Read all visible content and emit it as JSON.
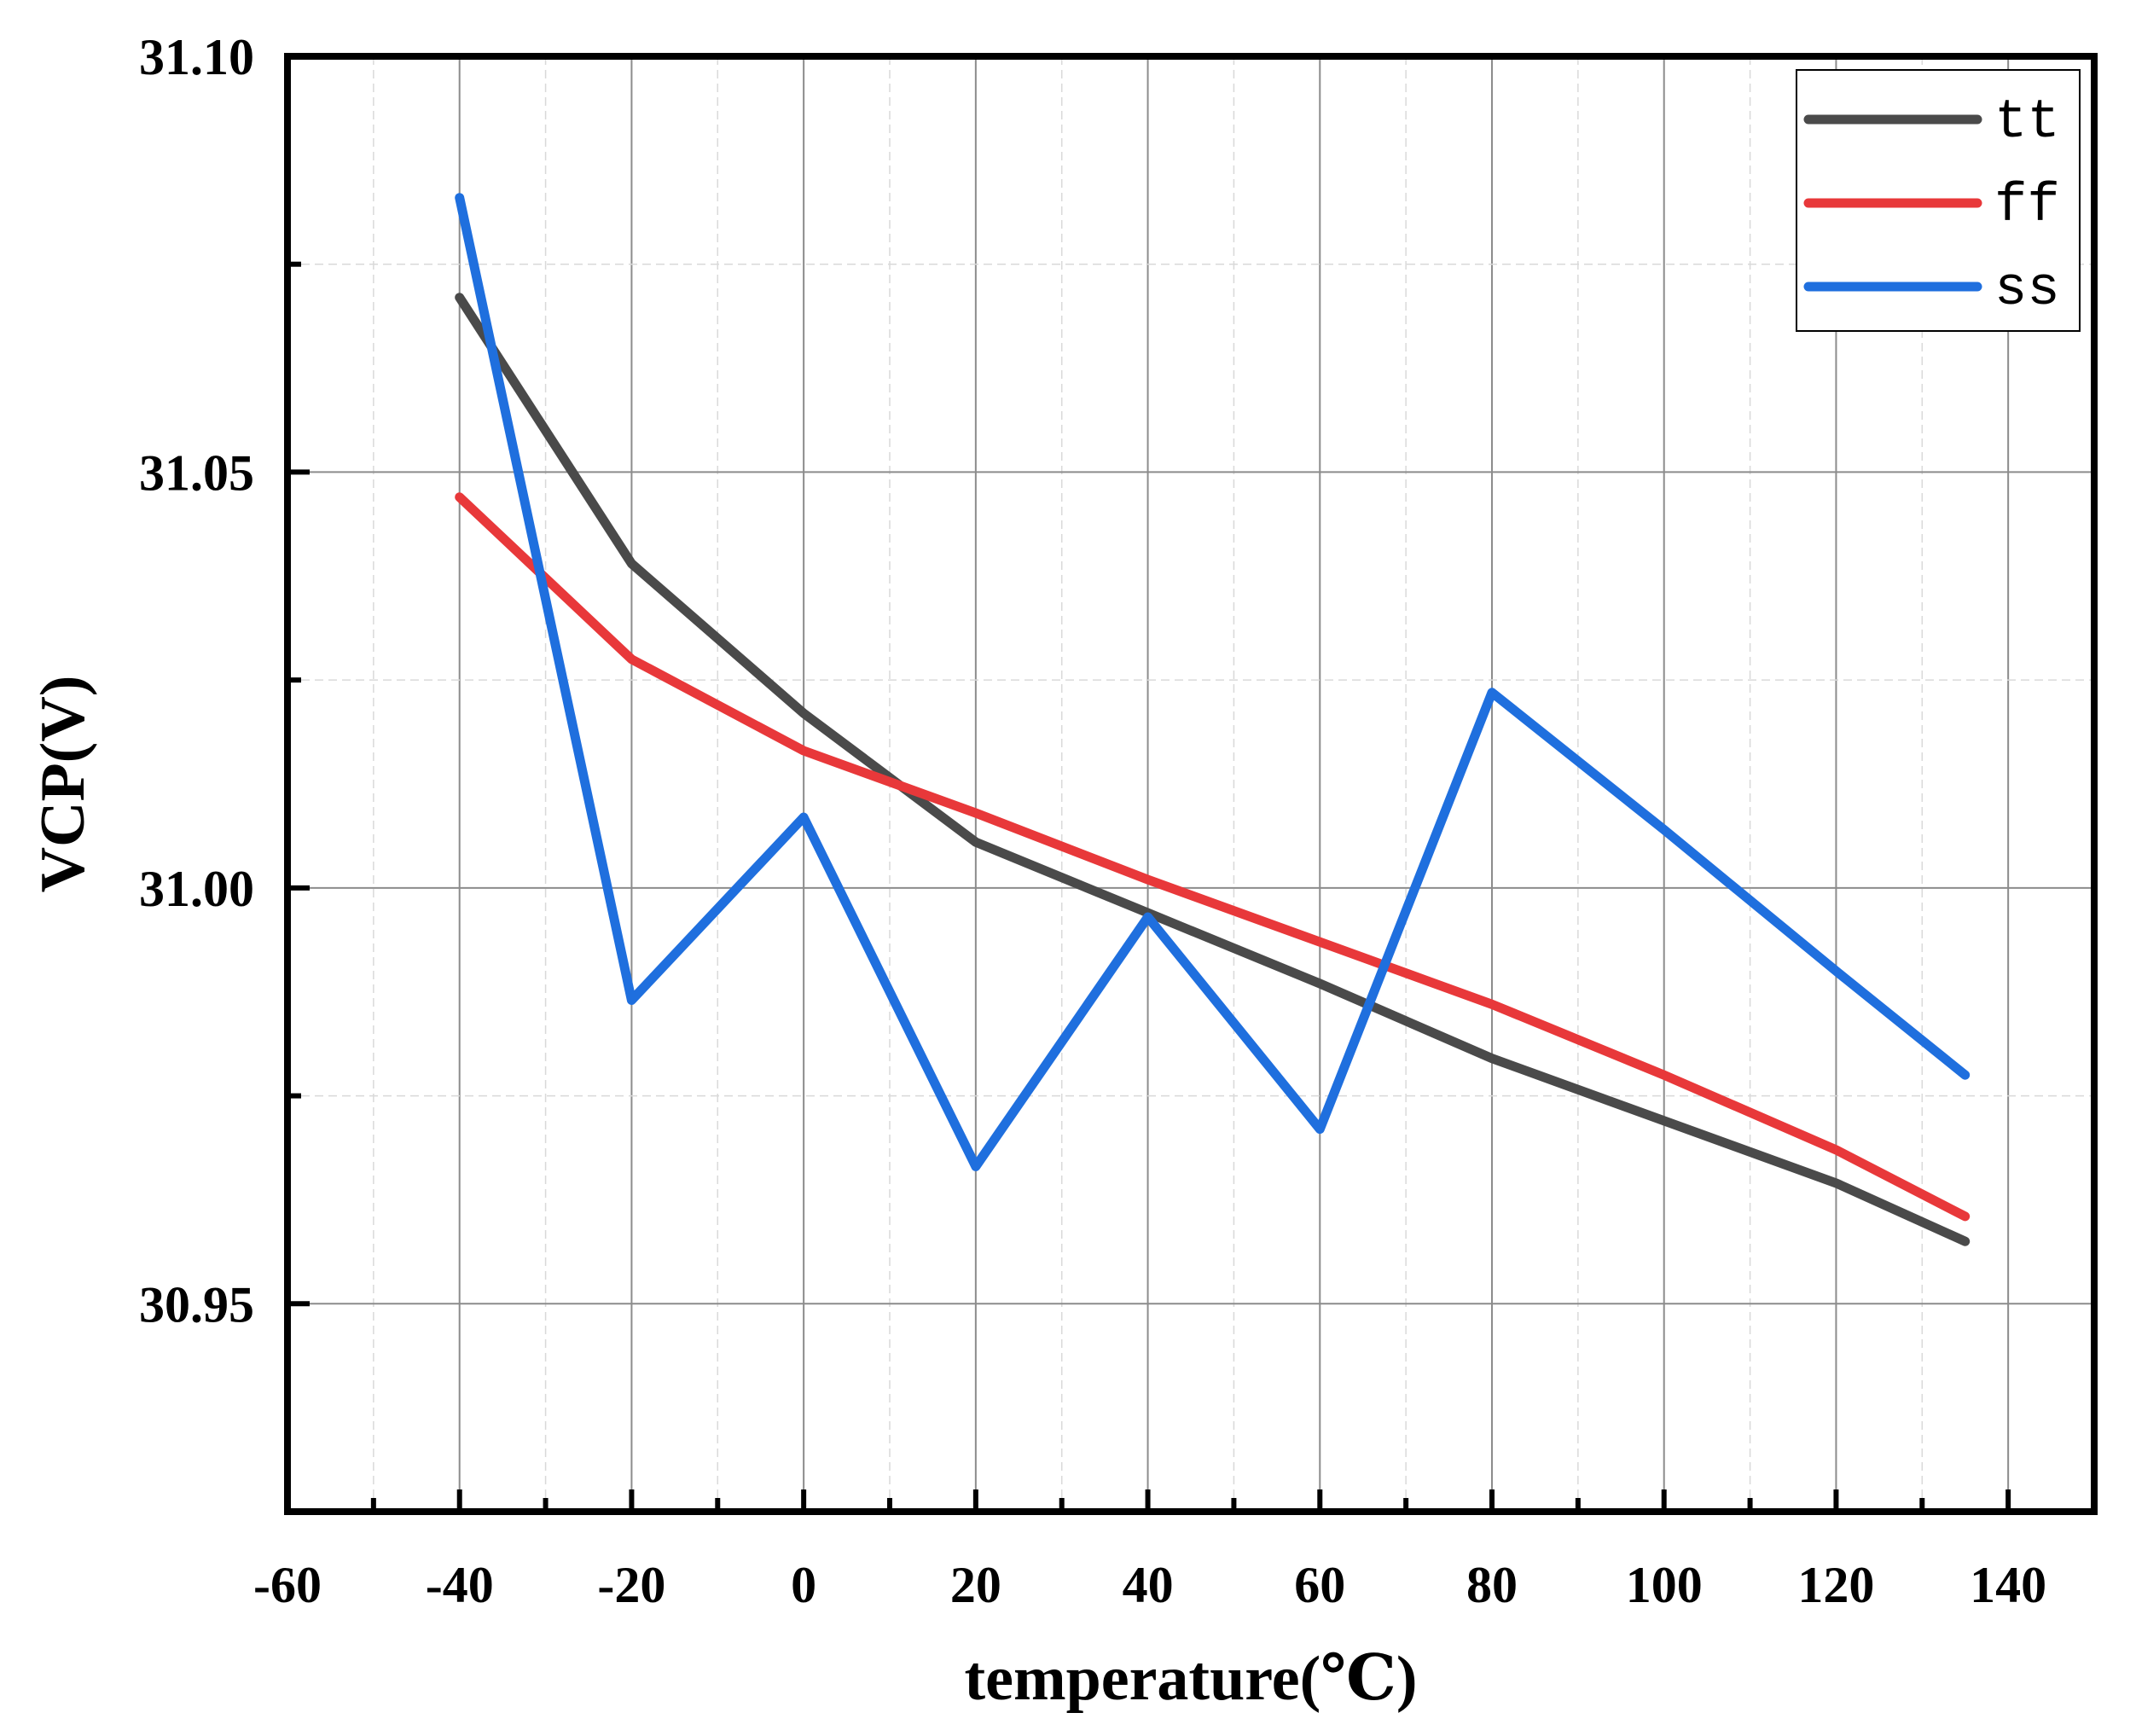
{
  "chart_data": {
    "type": "line",
    "title": "",
    "xlabel": "temperature(℃)",
    "ylabel": "VCP(V)",
    "xlim": [
      -60,
      150
    ],
    "ylim": [
      30.925,
      31.1
    ],
    "grid": true,
    "legend_position": "top-right",
    "x_ticks": [
      -60,
      -40,
      -20,
      0,
      20,
      40,
      60,
      80,
      100,
      120,
      140
    ],
    "x_tick_labels": [
      "-60",
      "-40",
      "-20",
      "0",
      "20",
      "40",
      "60",
      "80",
      "100",
      "120",
      "140"
    ],
    "y_ticks": [
      30.95,
      31.0,
      31.05,
      31.1
    ],
    "y_tick_labels": [
      "30.95",
      "31.00",
      "31.05",
      "31.10"
    ],
    "x": [
      -40,
      -20,
      0,
      20,
      40,
      60,
      80,
      100,
      120,
      135
    ],
    "series": [
      {
        "name": "tt",
        "color": "#4a4a4a",
        "values": [
          31.071,
          31.039,
          31.021,
          31.0055,
          30.997,
          30.9885,
          30.9795,
          30.972,
          30.9645,
          30.9575
        ]
      },
      {
        "name": "ff",
        "color": "#e8383a",
        "values": [
          31.047,
          31.0275,
          31.0165,
          31.009,
          31.001,
          30.9935,
          30.986,
          30.9775,
          30.9685,
          30.9605
        ]
      },
      {
        "name": "ss",
        "color": "#1f6fde",
        "values": [
          31.083,
          30.9865,
          31.0085,
          30.9665,
          30.9965,
          30.971,
          31.0235,
          31.007,
          30.99,
          30.9775
        ]
      }
    ]
  }
}
